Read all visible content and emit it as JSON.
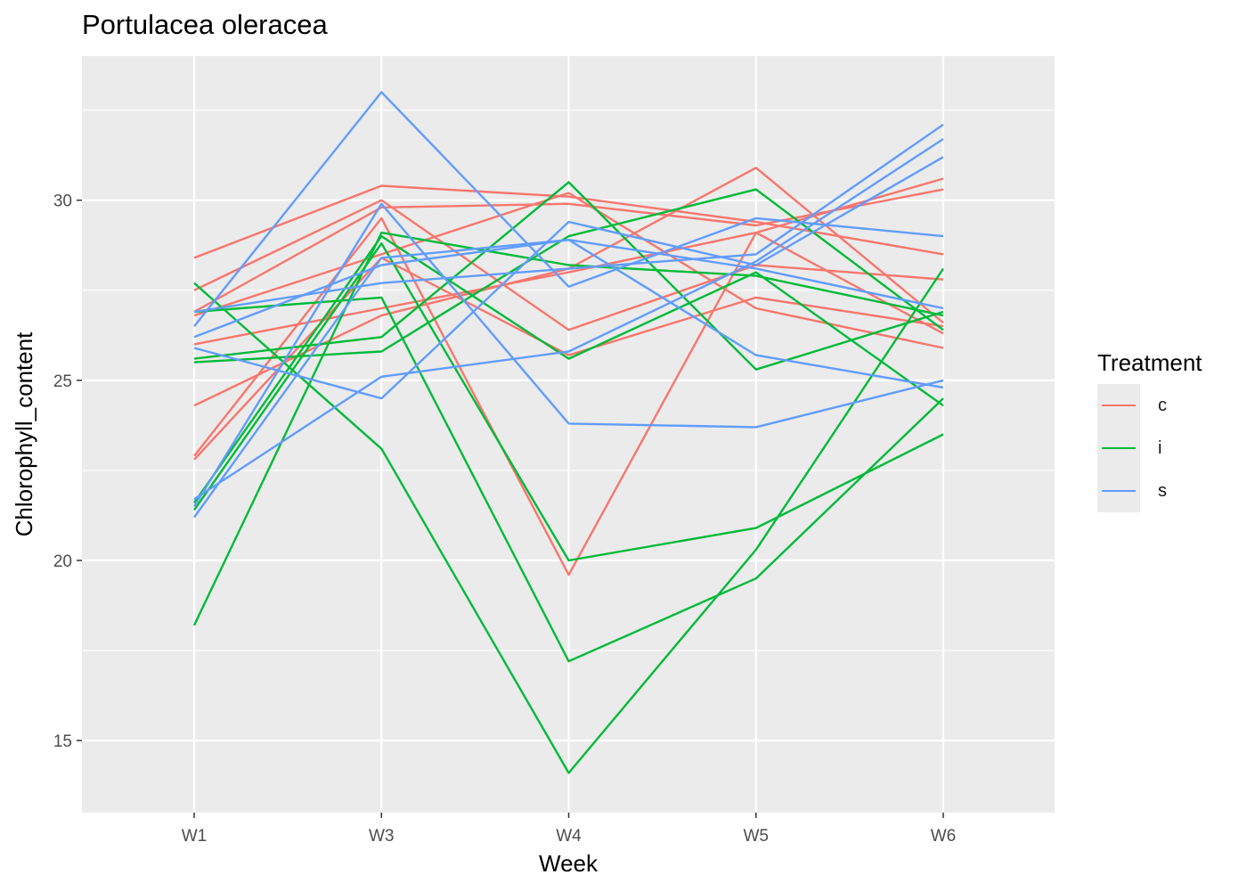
{
  "chart_data": {
    "type": "line",
    "title": "Portulacea oleracea",
    "xlabel": "Week",
    "ylabel": "Chlorophyll_content",
    "categories": [
      "W1",
      "W3",
      "W4",
      "W5",
      "W6"
    ],
    "ylim": [
      13.0,
      34.0
    ],
    "yticks": [
      15,
      20,
      25,
      30
    ],
    "grid": true,
    "legend": {
      "title": "Treatment",
      "position": "right",
      "entries": [
        {
          "label": "c",
          "color": "#F8766D"
        },
        {
          "label": "i",
          "color": "#00BA38"
        },
        {
          "label": "s",
          "color": "#619CFF"
        }
      ]
    },
    "series": [
      {
        "group": "c",
        "values": [
          28.4,
          30.4,
          30.1,
          29.4,
          28.5
        ]
      },
      {
        "group": "c",
        "values": [
          27.5,
          30.0,
          26.4,
          28.2,
          27.8
        ]
      },
      {
        "group": "c",
        "values": [
          26.9,
          29.8,
          29.9,
          29.3,
          30.3
        ]
      },
      {
        "group": "c",
        "values": [
          26.8,
          28.5,
          30.2,
          27.0,
          25.9
        ]
      },
      {
        "group": "c",
        "values": [
          26.0,
          27.0,
          28.0,
          29.1,
          26.3
        ]
      },
      {
        "group": "c",
        "values": [
          24.3,
          26.8,
          28.1,
          30.9,
          26.6
        ]
      },
      {
        "group": "c",
        "values": [
          22.9,
          29.5,
          19.6,
          29.1,
          30.6
        ]
      },
      {
        "group": "c",
        "values": [
          22.8,
          28.4,
          25.7,
          27.3,
          26.5
        ]
      },
      {
        "group": "i",
        "values": [
          27.7,
          23.1,
          14.1,
          20.3,
          28.1
        ]
      },
      {
        "group": "i",
        "values": [
          26.9,
          27.3,
          17.2,
          19.5,
          24.5
        ]
      },
      {
        "group": "i",
        "values": [
          25.6,
          26.2,
          30.5,
          25.3,
          26.9
        ]
      },
      {
        "group": "i",
        "values": [
          25.5,
          25.8,
          29.0,
          30.3,
          26.4
        ]
      },
      {
        "group": "i",
        "values": [
          21.4,
          28.8,
          20.0,
          20.9,
          23.5
        ]
      },
      {
        "group": "i",
        "values": [
          18.2,
          29.1,
          28.2,
          27.9,
          26.8
        ]
      },
      {
        "group": "i",
        "values": [
          21.6,
          29.0,
          25.6,
          28.0,
          24.3
        ]
      },
      {
        "group": "s",
        "values": [
          26.9,
          27.7,
          28.1,
          28.5,
          32.1
        ]
      },
      {
        "group": "s",
        "values": [
          26.5,
          33.0,
          27.6,
          29.5,
          29.0
        ]
      },
      {
        "group": "s",
        "values": [
          26.2,
          28.2,
          28.9,
          28.1,
          27.0
        ]
      },
      {
        "group": "s",
        "values": [
          25.9,
          24.5,
          29.4,
          28.2,
          31.2
        ]
      },
      {
        "group": "s",
        "values": [
          21.7,
          25.1,
          25.8,
          28.3,
          31.7
        ]
      },
      {
        "group": "s",
        "values": [
          21.2,
          28.4,
          28.9,
          25.7,
          24.8
        ]
      },
      {
        "group": "s",
        "values": [
          21.5,
          29.9,
          23.8,
          23.7,
          25.0
        ]
      }
    ]
  },
  "colors": {
    "panel_background": "#EBEBEB",
    "grid_line": "#FFFFFF",
    "axis_text": "#4D4D4D"
  }
}
